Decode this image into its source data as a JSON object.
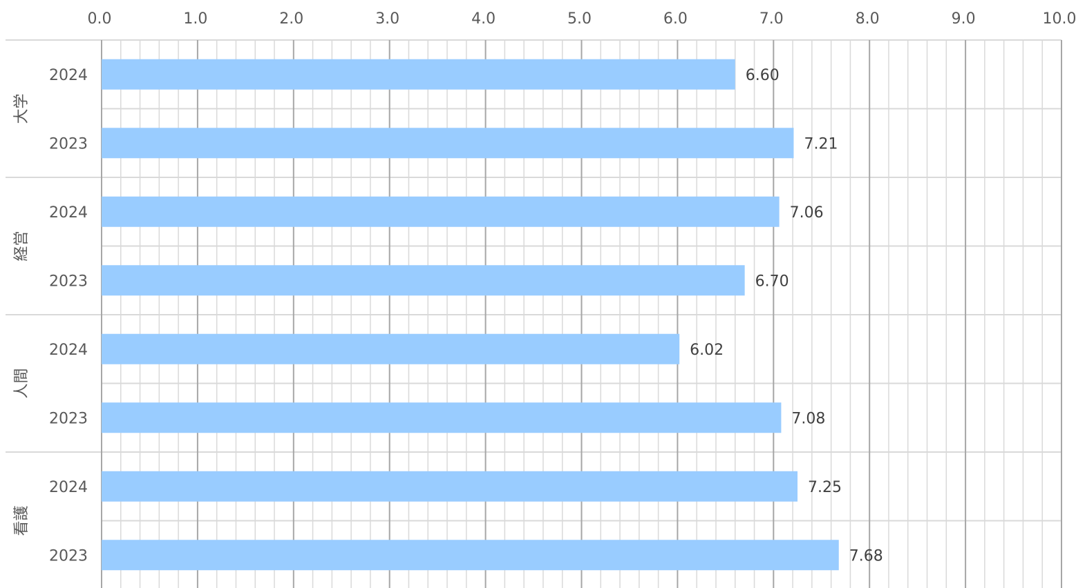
{
  "chart_data": {
    "type": "bar",
    "orientation": "horizontal",
    "xlim": [
      0,
      10
    ],
    "x_ticks": [
      "0.0",
      "1.0",
      "2.0",
      "3.0",
      "4.0",
      "5.0",
      "6.0",
      "7.0",
      "8.0",
      "9.0",
      "10.0"
    ],
    "grid": true,
    "groups": [
      {
        "label": "大学",
        "bars": [
          {
            "year": "2024",
            "value": 6.6,
            "value_label": "6.60"
          },
          {
            "year": "2023",
            "value": 7.21,
            "value_label": "7.21"
          }
        ]
      },
      {
        "label": "経営",
        "bars": [
          {
            "year": "2024",
            "value": 7.06,
            "value_label": "7.06"
          },
          {
            "year": "2023",
            "value": 6.7,
            "value_label": "6.70"
          }
        ]
      },
      {
        "label": "人間",
        "bars": [
          {
            "year": "2024",
            "value": 6.02,
            "value_label": "6.02"
          },
          {
            "year": "2023",
            "value": 7.08,
            "value_label": "7.08"
          }
        ]
      },
      {
        "label": "看護",
        "bars": [
          {
            "year": "2024",
            "value": 7.25,
            "value_label": "7.25"
          },
          {
            "year": "2023",
            "value": 7.68,
            "value_label": "7.68"
          }
        ]
      }
    ],
    "colors": {
      "bar": "#99CCFF",
      "major_grid": "#A6A6A6",
      "minor_grid": "#D9D9D9"
    }
  }
}
